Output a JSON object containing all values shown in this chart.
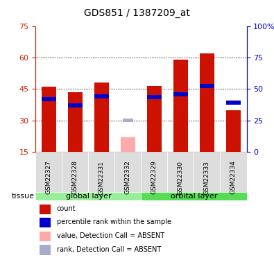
{
  "title": "GDS851 / 1387209_at",
  "samples": [
    "GSM22327",
    "GSM22328",
    "GSM22331",
    "GSM22332",
    "GSM22329",
    "GSM22330",
    "GSM22333",
    "GSM22334"
  ],
  "groups": [
    "global layer",
    "global layer",
    "global layer",
    "global layer",
    "orbital layer",
    "orbital layer",
    "orbital layer",
    "orbital layer"
  ],
  "red_values": [
    46.0,
    43.5,
    48.0,
    null,
    46.5,
    59.0,
    62.0,
    35.0
  ],
  "blue_values": [
    40.0,
    37.0,
    41.5,
    null,
    41.0,
    42.5,
    46.5,
    38.5
  ],
  "absent_pink": [
    null,
    null,
    null,
    22.0,
    null,
    null,
    null,
    null
  ],
  "absent_blue": [
    null,
    null,
    null,
    30.0,
    null,
    null,
    null,
    null
  ],
  "ylim_left": [
    15,
    75
  ],
  "ylim_right": [
    0,
    100
  ],
  "yticks_left": [
    15,
    30,
    45,
    60,
    75
  ],
  "yticks_right": [
    0,
    25,
    50,
    75,
    100
  ],
  "baseline": 15,
  "group1_label": "global layer",
  "group2_label": "orbital layer",
  "tissue_label": "tissue",
  "legend_items": [
    {
      "label": "count",
      "color": "#cc1100",
      "marker": "s"
    },
    {
      "label": "percentile rank within the sample",
      "color": "#0000cc",
      "marker": "s"
    },
    {
      "label": "value, Detection Call = ABSENT",
      "color": "#ffaaaa",
      "marker": "s"
    },
    {
      "label": "rank, Detection Call = ABSENT",
      "color": "#aaaaff",
      "marker": "s"
    }
  ],
  "bar_width": 0.55,
  "red_color": "#cc1100",
  "blue_color": "#0000cc",
  "pink_color": "#ffaaaa",
  "lightblue_color": "#aaaacc",
  "bg_plot": "#ffffff",
  "bg_sample": "#dddddd",
  "bg_group1": "#99ee99",
  "bg_group2": "#55dd55",
  "left_axis_color": "#cc2200",
  "right_axis_color": "#0000cc"
}
